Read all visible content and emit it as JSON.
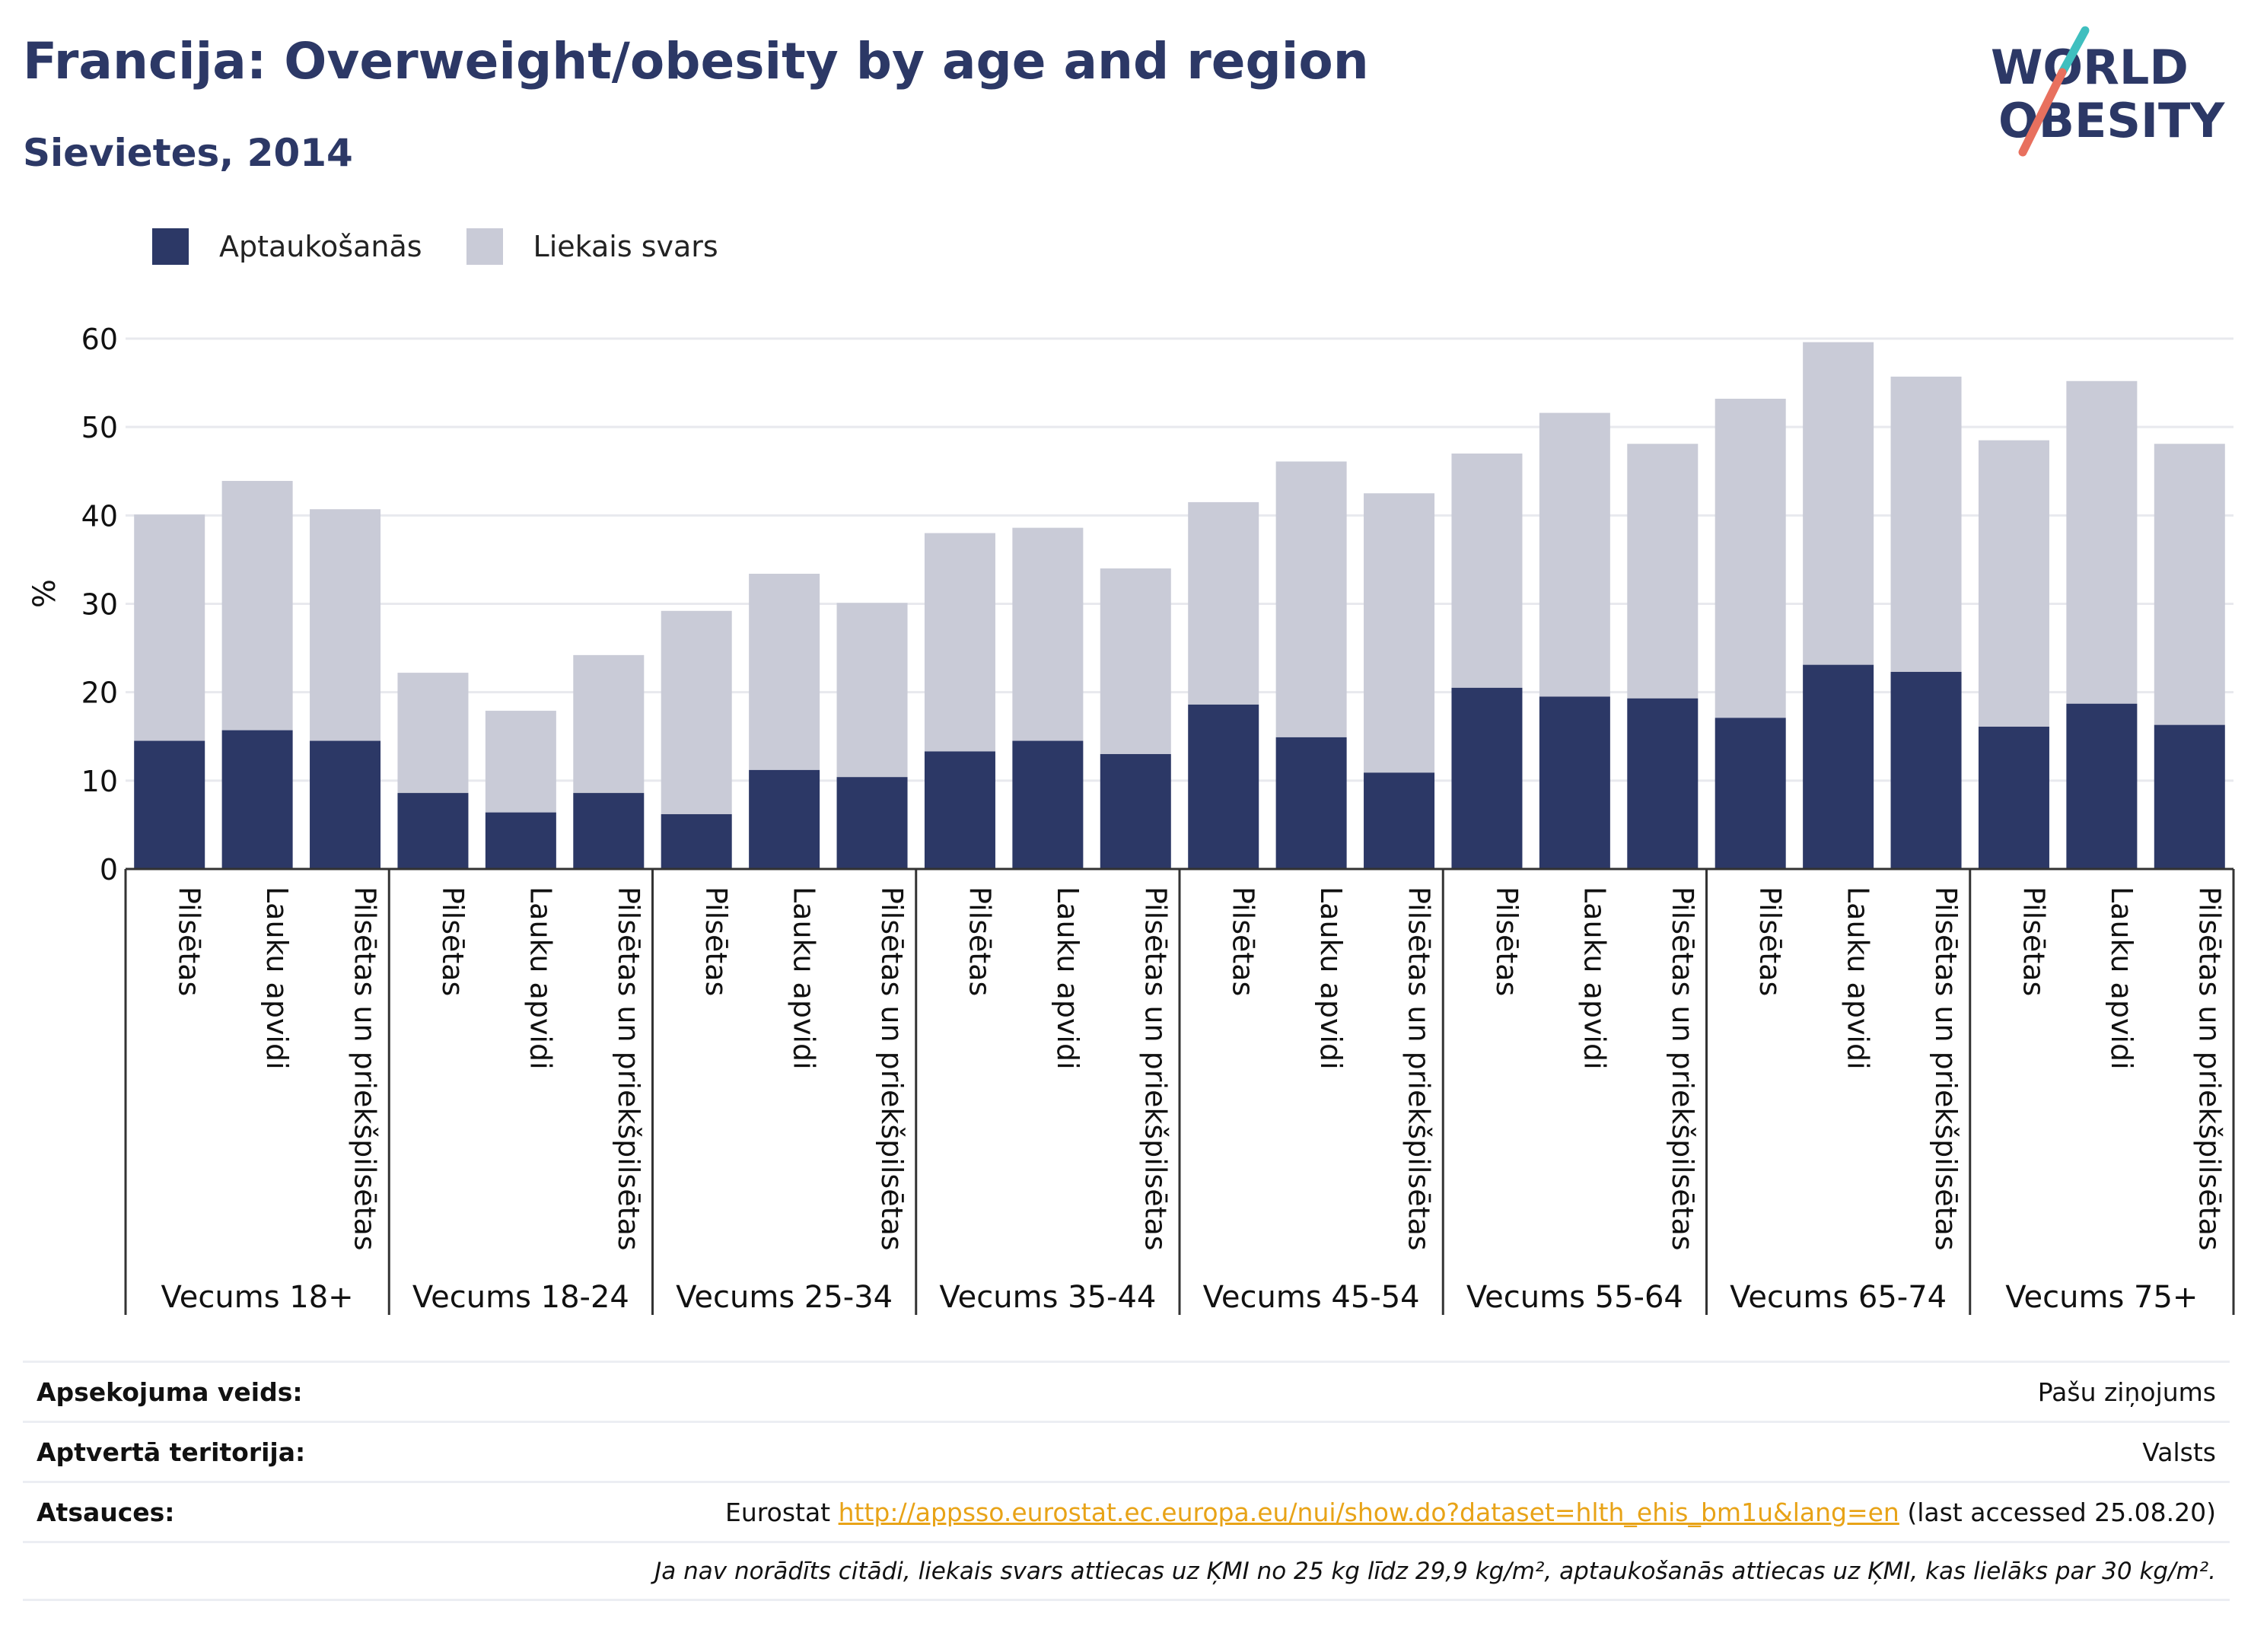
{
  "header": {
    "title": "Francija: Overweight/obesity by age and region",
    "subtitle": "Sievietes, 2014"
  },
  "logo": {
    "line1": "WORLD",
    "line2": "OBESITY"
  },
  "colors": {
    "obesity": "#2c3866",
    "overweight": "#c9cbd7",
    "title": "#2c3866",
    "link": "#e8a317",
    "logo_teal": "#3fbfbf",
    "logo_coral": "#e8705e"
  },
  "legend": [
    {
      "label": "Aptaukošanās",
      "color": "#2c3866"
    },
    {
      "label": "Liekais svars",
      "color": "#c9cbd7"
    }
  ],
  "chart_data": {
    "type": "bar",
    "stacked": true,
    "ylabel": "%",
    "ylim": [
      0,
      60
    ],
    "yticks": [
      0,
      10,
      20,
      30,
      40,
      50,
      60
    ],
    "grid": true,
    "legend_position": "top-left",
    "groups": [
      {
        "label": "Vecums 18+",
        "categories": [
          "Pilsētas",
          "Lauku apvidi",
          "Pilsētas un priekšpilsētas"
        ],
        "obesity": [
          14.5,
          15.7,
          14.5
        ],
        "total": [
          40.1,
          43.9,
          40.7
        ]
      },
      {
        "label": "Vecums 18-24",
        "categories": [
          "Pilsētas",
          "Lauku apvidi",
          "Pilsētas un priekšpilsētas"
        ],
        "obesity": [
          8.6,
          6.4,
          8.6
        ],
        "total": [
          22.2,
          17.9,
          24.2
        ]
      },
      {
        "label": "Vecums 25-34",
        "categories": [
          "Pilsētas",
          "Lauku apvidi",
          "Pilsētas un priekšpilsētas"
        ],
        "obesity": [
          6.2,
          11.2,
          10.4
        ],
        "total": [
          29.2,
          33.4,
          30.1
        ]
      },
      {
        "label": "Vecums 35-44",
        "categories": [
          "Pilsētas",
          "Lauku apvidi",
          "Pilsētas un priekšpilsētas"
        ],
        "obesity": [
          13.3,
          14.5,
          13.0
        ],
        "total": [
          38.0,
          38.6,
          34.0
        ]
      },
      {
        "label": "Vecums 45-54",
        "categories": [
          "Pilsētas",
          "Lauku apvidi",
          "Pilsētas un priekšpilsētas"
        ],
        "obesity": [
          18.6,
          14.9,
          10.9
        ],
        "total": [
          41.5,
          46.1,
          42.5
        ]
      },
      {
        "label": "Vecums 55-64",
        "categories": [
          "Pilsētas",
          "Lauku apvidi",
          "Pilsētas un priekšpilsētas"
        ],
        "obesity": [
          20.5,
          19.5,
          19.3
        ],
        "total": [
          47.0,
          51.6,
          48.1
        ]
      },
      {
        "label": "Vecums 65-74",
        "categories": [
          "Pilsētas",
          "Lauku apvidi",
          "Pilsētas un priekšpilsētas"
        ],
        "obesity": [
          17.1,
          23.1,
          22.3
        ],
        "total": [
          53.2,
          59.6,
          55.7
        ]
      },
      {
        "label": "Vecums 75+",
        "categories": [
          "Pilsētas",
          "Lauku apvidi",
          "Pilsētas un priekšpilsētas"
        ],
        "obesity": [
          16.1,
          18.7,
          16.3
        ],
        "total": [
          48.5,
          55.2,
          48.1
        ]
      }
    ]
  },
  "info": {
    "survey_label": "Apsekojuma veids:",
    "survey_value": "Pašu ziņojums",
    "territory_label": "Aptvertā teritorija:",
    "territory_value": "Valsts",
    "refs_label": "Atsauces:",
    "refs_prefix": "Eurostat ",
    "refs_link": "http://appsso.eurostat.ec.europa.eu/nui/show.do?dataset=hlth_ehis_bm1u&lang=en",
    "refs_suffix": " (last accessed 25.08.20)",
    "note": "Ja nav norādīts citādi, liekais svars attiecas uz ĶMI no 25 kg līdz 29,9 kg/m², aptaukošanās attiecas uz ĶMI, kas lielāks par 30 kg/m²."
  }
}
